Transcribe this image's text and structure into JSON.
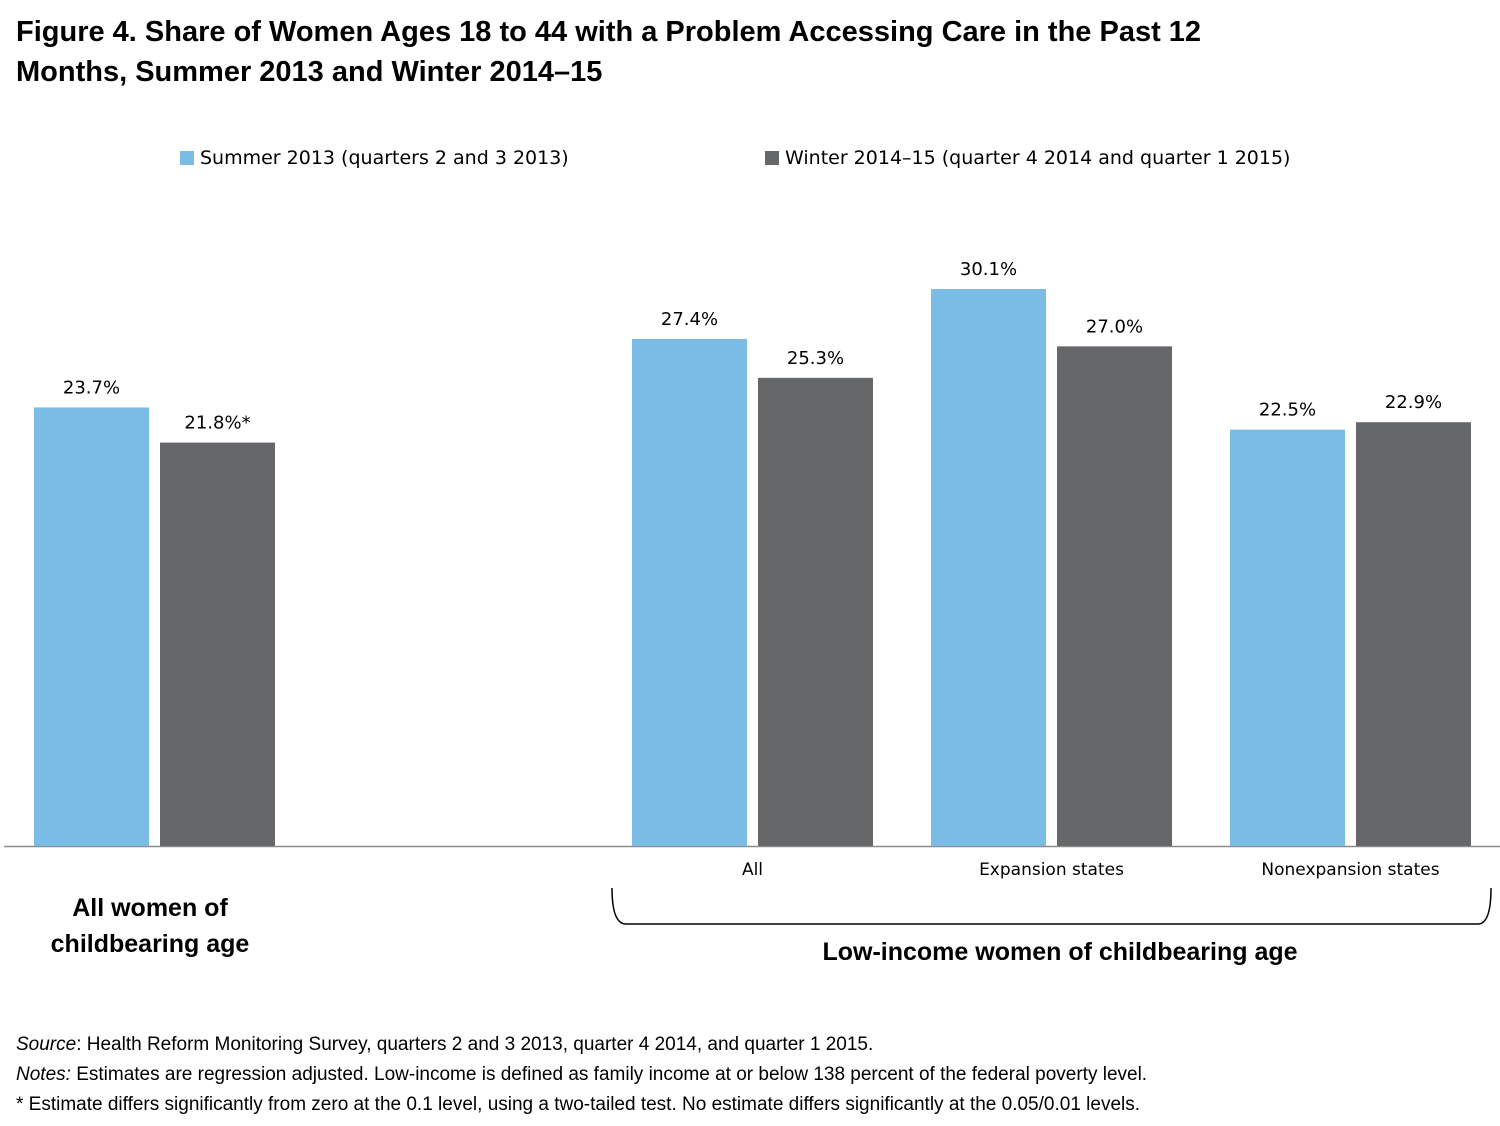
{
  "title": {
    "line1": "Figure 4. Share of Women Ages 18 to 44 with a Problem Accessing Care in the Past 12",
    "line2": "Months, Summer 2013 and Winter 2014–15"
  },
  "colors": {
    "summer": "#7abce6",
    "winter": "#666769",
    "axis": "#8c8c8c"
  },
  "chart_data": {
    "type": "bar",
    "categories": [
      "",
      "All",
      "Expansion states",
      "Nonexpansion states"
    ],
    "series": [
      {
        "name": "Summer 2013 (quarters 2 and 3 2013)",
        "values": [
          23.7,
          27.4,
          30.1,
          22.5
        ],
        "labels": [
          "23.7%",
          "27.4%",
          "30.1%",
          "22.5%"
        ]
      },
      {
        "name": "Winter 2014–15 (quarter 4 2014 and quarter 1 2015)",
        "values": [
          21.8,
          25.3,
          27.0,
          22.9
        ],
        "labels": [
          "21.8%*",
          "25.3%",
          "27.0%",
          "22.9%"
        ]
      }
    ],
    "groups": [
      {
        "line1": "All women of",
        "line2": "childbearing age"
      },
      {
        "line1": "Low-income women of childbearing age"
      }
    ],
    "ylim": [
      0,
      30.1
    ],
    "grid": false,
    "legend": "top"
  },
  "notes": {
    "source_label": "Source",
    "source_text": ": Health Reform Monitoring Survey, quarters 2 and 3 2013, quarter 4 2014, and quarter 1 2015.",
    "notes_label": "Notes:",
    "notes_text": " Estimates are regression adjusted.  Low-income is defined as family income at or below 138 percent of the federal poverty level.",
    "footnote": "* Estimate differs significantly from zero at the 0.1 level, using a two-tailed test.  No estimate differs significantly at the 0.05/0.01 levels."
  }
}
